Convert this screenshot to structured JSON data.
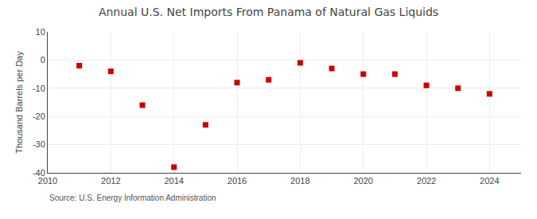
{
  "chart_data": {
    "type": "scatter",
    "title": "Annual U.S. Net Imports From Panama of Natural Gas Liquids",
    "ylabel": "Thousand Barrels per Day",
    "annotation": "Source: U.S. Energy Information Administration",
    "x": [
      2011,
      2012,
      2013,
      2014,
      2015,
      2016,
      2017,
      2018,
      2019,
      2020,
      2021,
      2022,
      2023,
      2024
    ],
    "values": [
      -2,
      -4,
      -16,
      -38,
      -23,
      -8,
      -7,
      -1,
      -3,
      -5,
      -5,
      -9,
      -10,
      -12
    ],
    "color": "#cc0000",
    "marker": "square",
    "xlim": [
      2010,
      2025
    ],
    "xticks": [
      2010,
      2012,
      2014,
      2016,
      2018,
      2020,
      2022,
      2024
    ],
    "ylim": [
      -40,
      10
    ],
    "yticks": [
      -40,
      -30,
      -20,
      -10,
      0,
      10
    ],
    "grid": true
  }
}
